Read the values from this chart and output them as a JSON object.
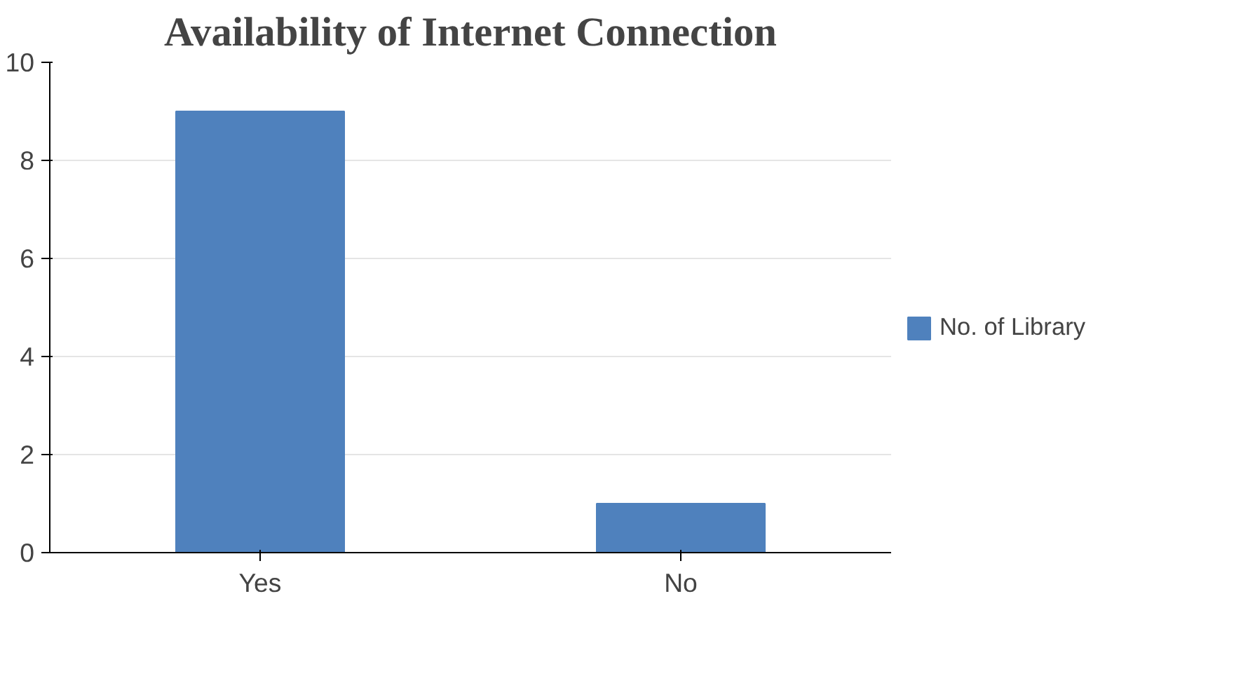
{
  "chart_data": {
    "type": "bar",
    "title": "Availability of Internet Connection",
    "categories": [
      "Yes",
      "No"
    ],
    "series": [
      {
        "name": "No. of Library",
        "color": "#4f81bd",
        "values": [
          9,
          1
        ]
      }
    ],
    "ylim": [
      0,
      10
    ],
    "yticks": [
      0,
      2,
      4,
      6,
      8,
      10
    ],
    "grid": "y",
    "legend": "right"
  }
}
